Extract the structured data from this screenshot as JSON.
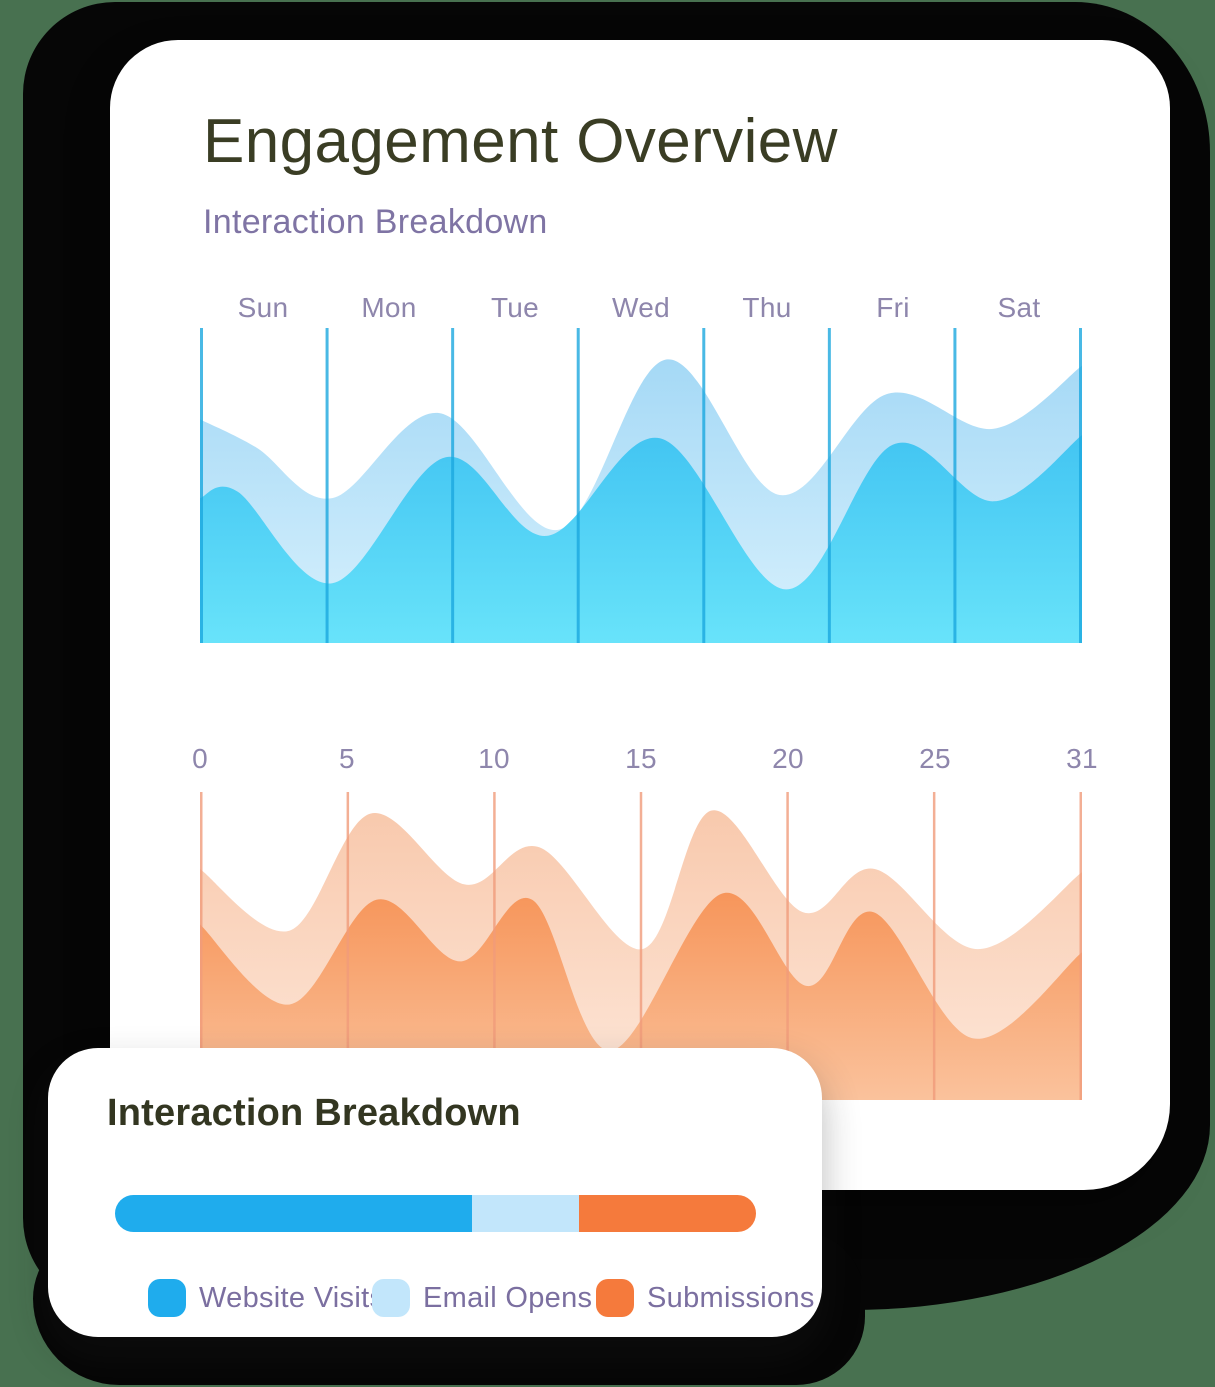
{
  "page": {
    "background_color": "#487150",
    "backdrop_color": "#060606",
    "card_color": "#FFFFFF"
  },
  "main_card": {
    "title": "Engagement Overview",
    "title_color": "#3A3D24",
    "subtitle": "Interaction Breakdown",
    "subtitle_color": "#7F74A4",
    "axis_label_color": "#8E86AC"
  },
  "breakdown_card": {
    "title": "Interaction Breakdown"
  },
  "chart_data": [
    {
      "id": "weekly",
      "type": "area",
      "x_labels": [
        "Sun",
        "Mon",
        "Tue",
        "Wed",
        "Thu",
        "Fri",
        "Sat"
      ],
      "label_placement": "between-gridlines",
      "x_domain": [
        0,
        7
      ],
      "y_domain": [
        0,
        100
      ],
      "grid": "vertical-only",
      "legend_position": "none",
      "gridlines": {
        "count": 8,
        "color": "#1CA8DE",
        "width": 3,
        "opacity": 0.8
      },
      "series": [
        {
          "name": "Email Opens",
          "color_top": "#9FD6F5",
          "color_bottom": "#D8F1FD",
          "points": [
            [
              0,
              71
            ],
            [
              0.45,
              62
            ],
            [
              1.05,
              46
            ],
            [
              1.9,
              73
            ],
            [
              2.85,
              36
            ],
            [
              3.7,
              90
            ],
            [
              4.6,
              47
            ],
            [
              5.45,
              79
            ],
            [
              6.3,
              68
            ],
            [
              7,
              88
            ]
          ]
        },
        {
          "name": "Website Visits",
          "color_top": "#2FB5EE",
          "color_bottom": "#68E3FA",
          "points": [
            [
              0,
              46
            ],
            [
              0.3,
              48
            ],
            [
              1.05,
              19
            ],
            [
              1.95,
              59
            ],
            [
              2.75,
              34
            ],
            [
              3.65,
              65
            ],
            [
              4.65,
              17
            ],
            [
              5.5,
              63
            ],
            [
              6.3,
              45
            ],
            [
              7,
              66
            ]
          ]
        }
      ]
    },
    {
      "id": "monthly",
      "type": "area",
      "x_labels": [
        "0",
        "5",
        "10",
        "15",
        "20",
        "25",
        "31"
      ],
      "label_placement": "on-gridlines",
      "x_domain": [
        0,
        6
      ],
      "y_domain": [
        0,
        100
      ],
      "grid": "vertical-only",
      "legend_position": "none",
      "gridlines": {
        "count": 7,
        "color": "#F09B7B",
        "width": 2.5,
        "opacity": 0.8
      },
      "series": [
        {
          "name": "Submissions (back)",
          "color_top": "#F8C7AA",
          "color_bottom": "#FDE7D9",
          "points": [
            [
              0,
              75
            ],
            [
              0.61,
              55
            ],
            [
              1.16,
              93
            ],
            [
              1.8,
              70
            ],
            [
              2.31,
              82
            ],
            [
              3.01,
              49
            ],
            [
              3.48,
              94
            ],
            [
              4.1,
              61
            ],
            [
              4.59,
              75
            ],
            [
              5.29,
              49
            ],
            [
              6,
              74
            ]
          ]
        },
        {
          "name": "Submissions (front)",
          "color_top": "#F5803B",
          "color_bottom": "#FAC29C",
          "points": [
            [
              0,
              57
            ],
            [
              0.61,
              31
            ],
            [
              1.2,
              65
            ],
            [
              1.77,
              45
            ],
            [
              2.26,
              65
            ],
            [
              2.79,
              16
            ],
            [
              3.55,
              67
            ],
            [
              4.13,
              37
            ],
            [
              4.58,
              61
            ],
            [
              5.26,
              20
            ],
            [
              6,
              48
            ]
          ]
        }
      ]
    },
    {
      "id": "breakdown_bar",
      "type": "bar",
      "orientation": "stacked-horizontal",
      "segments": [
        {
          "label": "Website Visits",
          "color": "#1FACED",
          "percent": 55.7
        },
        {
          "label": "Email Opens",
          "color": "#C2E6FB",
          "percent": 16.7
        },
        {
          "label": "Submissions",
          "color": "#F57A3C",
          "percent": 27.6
        }
      ]
    }
  ]
}
